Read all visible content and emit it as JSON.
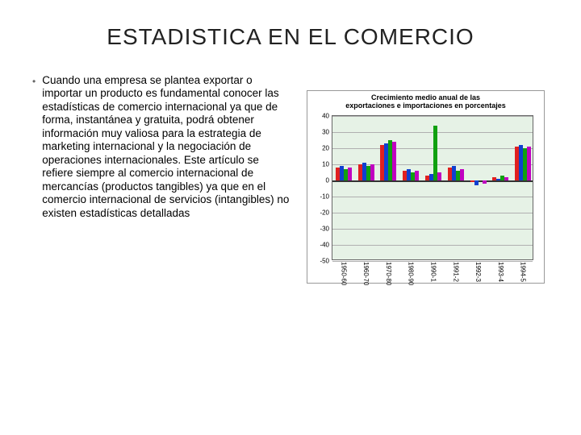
{
  "title": "ESTADISTICA EN EL COMERCIO",
  "bullet": "•",
  "body": "Cuando una empresa se plantea exportar o importar un producto es fundamental conocer las estadísticas de comercio internacional ya que de forma, instantánea y gratuita, podrá obtener información muy valiosa para la estrategia de marketing internacional y la negociación de operaciones internacionales. Este artículo se refiere siempre al comercio internacional de mercancías (productos tangibles) ya que en el comercio internacional de servicios (intangibles) no existen estadísticas detalladas",
  "chart": {
    "type": "bar",
    "title_line1": "Crecimiento medio anual de las",
    "title_line2": "exportaciones e importaciones en porcentajes",
    "background_color": "#ffffff",
    "plot_bg_color": "#e6f2e6",
    "grid_color": "#b0b0b0",
    "border_color": "#666666",
    "ylim_min": -50,
    "ylim_max": 40,
    "ytick_step": 10,
    "categories": [
      "1950-60",
      "1960-70",
      "1970-80",
      "1980-90",
      "1990-1",
      "1991-2",
      "1992-3",
      "1993-4",
      "1994-5"
    ],
    "series_colors": [
      "#e02020",
      "#1040d0",
      "#10a010",
      "#c000c0"
    ],
    "series": [
      [
        8,
        10,
        22,
        6,
        3,
        8,
        -1,
        2,
        21
      ],
      [
        9,
        11,
        23,
        7,
        4,
        9,
        -3,
        1,
        22
      ],
      [
        7,
        9,
        25,
        5,
        34,
        6,
        0,
        3,
        20
      ],
      [
        8,
        10,
        24,
        6,
        5,
        7,
        -2,
        2,
        21
      ]
    ],
    "title_fontsize": 9,
    "axis_fontsize": 8
  }
}
